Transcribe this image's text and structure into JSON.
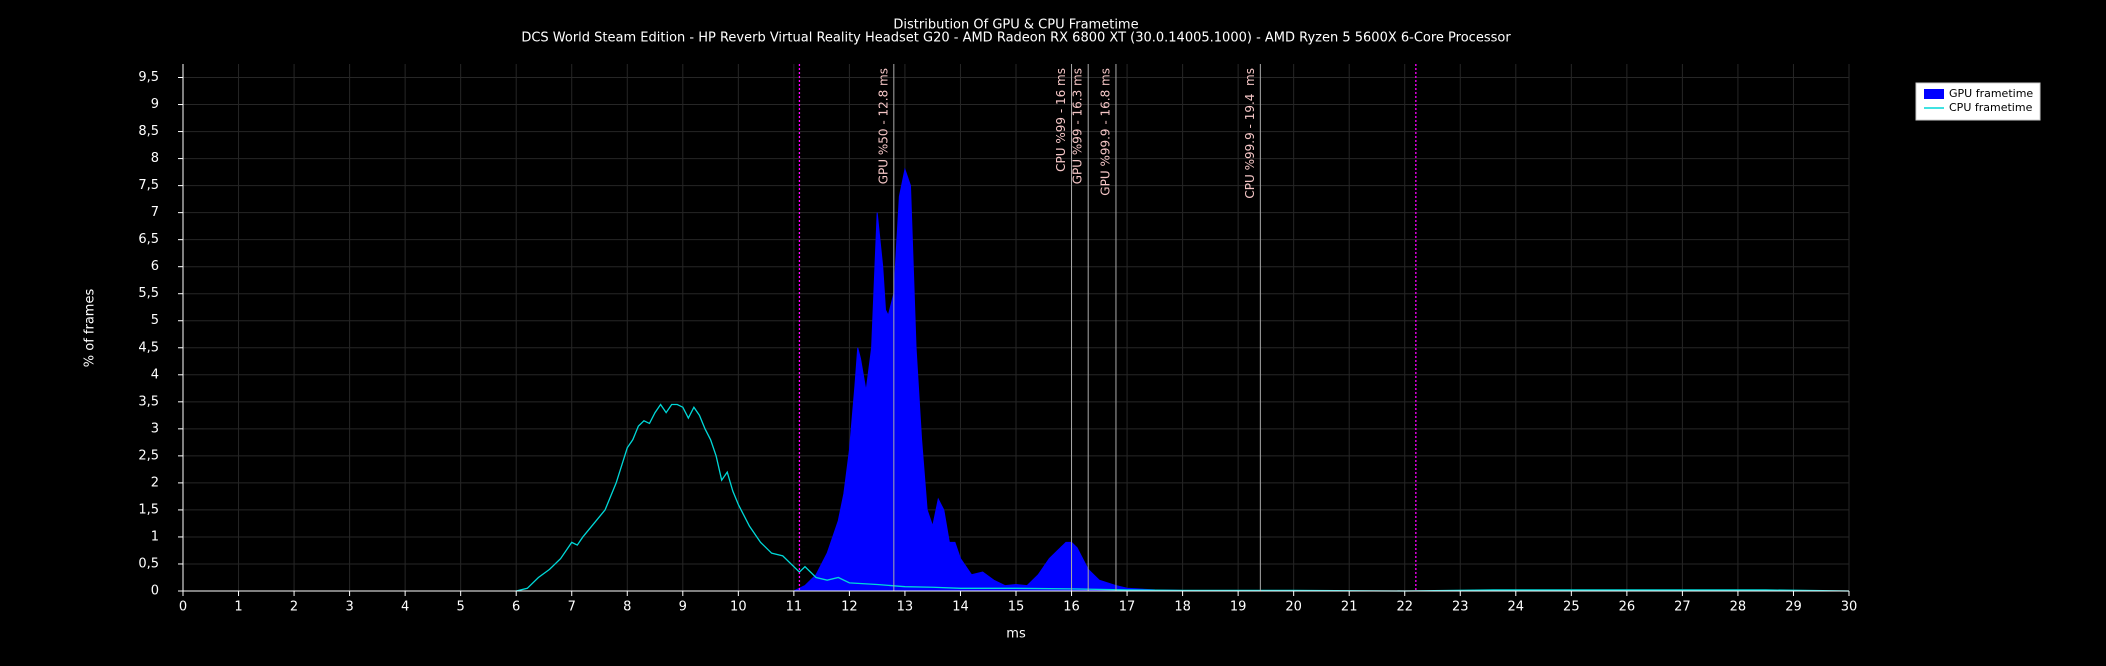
{
  "chart_data": {
    "type": "area-line",
    "title": "Distribution Of GPU & CPU Frametime",
    "subtitle": "DCS World Steam Edition - HP Reverb Virtual Reality Headset G20 - AMD Radeon RX 6800 XT (30.0.14005.1000) - AMD Ryzen 5 5600X 6-Core Processor",
    "x_label": "ms",
    "y_label": "% of frames",
    "xlim": [
      0,
      30
    ],
    "ylim": [
      0,
      9.75
    ],
    "xticks": [
      0,
      1,
      2,
      3,
      4,
      5,
      6,
      7,
      8,
      9,
      10,
      11,
      12,
      13,
      14,
      15,
      16,
      17,
      18,
      19,
      20,
      21,
      22,
      23,
      24,
      25,
      26,
      27,
      28,
      29,
      30
    ],
    "yticks": [
      0,
      {
        "value": 0.5,
        "label": "0,5"
      },
      1,
      {
        "value": 1.5,
        "label": "1,5"
      },
      2,
      {
        "value": 2.5,
        "label": "2,5"
      },
      3,
      {
        "value": 3.5,
        "label": "3,5"
      },
      4,
      {
        "value": 4.5,
        "label": "4,5"
      },
      5,
      {
        "value": 5.5,
        "label": "5,5"
      },
      6,
      {
        "value": 6.5,
        "label": "6,5"
      },
      7,
      {
        "value": 7.5,
        "label": "7,5"
      },
      8,
      {
        "value": 8.5,
        "label": "8,5"
      },
      9,
      {
        "value": 9.5,
        "label": "9,5"
      }
    ],
    "grid": true,
    "legend": "top-right",
    "series": [
      {
        "name": "GPU frametime",
        "color": "#0000ff",
        "style": "area",
        "x": [
          11.0,
          11.2,
          11.4,
          11.6,
          11.8,
          11.9,
          12.0,
          12.1,
          12.15,
          12.2,
          12.3,
          12.4,
          12.5,
          12.6,
          12.65,
          12.7,
          12.8,
          12.9,
          13.0,
          13.1,
          13.2,
          13.3,
          13.4,
          13.5,
          13.6,
          13.7,
          13.8,
          13.9,
          14.0,
          14.2,
          14.4,
          14.6,
          14.8,
          15.0,
          15.2,
          15.4,
          15.6,
          15.8,
          15.9,
          16.0,
          16.1,
          16.3,
          16.5,
          16.8,
          17.0,
          17.5,
          18.0,
          19.0,
          20.0
        ],
        "values": [
          0,
          0.1,
          0.3,
          0.7,
          1.3,
          1.8,
          2.6,
          3.8,
          4.5,
          4.3,
          3.7,
          4.5,
          7.0,
          6.0,
          5.2,
          5.1,
          5.5,
          7.3,
          7.8,
          7.5,
          4.5,
          2.8,
          1.5,
          1.2,
          1.7,
          1.5,
          0.9,
          0.9,
          0.6,
          0.3,
          0.35,
          0.2,
          0.1,
          0.12,
          0.1,
          0.3,
          0.6,
          0.8,
          0.9,
          0.9,
          0.8,
          0.4,
          0.2,
          0.1,
          0.05,
          0.02,
          0.01,
          0.01,
          0
        ]
      },
      {
        "name": "CPU frametime",
        "color": "#00d8d8",
        "style": "line",
        "x": [
          6.0,
          6.2,
          6.4,
          6.6,
          6.8,
          7.0,
          7.1,
          7.2,
          7.4,
          7.6,
          7.8,
          8.0,
          8.1,
          8.2,
          8.3,
          8.4,
          8.5,
          8.6,
          8.7,
          8.8,
          8.9,
          9.0,
          9.1,
          9.2,
          9.3,
          9.4,
          9.5,
          9.6,
          9.7,
          9.8,
          9.9,
          10.0,
          10.2,
          10.4,
          10.6,
          10.8,
          11.0,
          11.1,
          11.2,
          11.4,
          11.6,
          11.8,
          12.0,
          12.5,
          13.0,
          13.5,
          14.0,
          15.0,
          16.0,
          17.0,
          18.0,
          20.0,
          22.0,
          23.6,
          25.2,
          28.5,
          30.0
        ],
        "values": [
          0,
          0.05,
          0.25,
          0.4,
          0.6,
          0.9,
          0.85,
          1.0,
          1.25,
          1.5,
          2.0,
          2.65,
          2.8,
          3.05,
          3.15,
          3.1,
          3.3,
          3.45,
          3.3,
          3.45,
          3.45,
          3.4,
          3.2,
          3.4,
          3.25,
          3.0,
          2.8,
          2.5,
          2.05,
          2.2,
          1.85,
          1.6,
          1.2,
          0.9,
          0.7,
          0.65,
          0.45,
          0.35,
          0.45,
          0.25,
          0.2,
          0.25,
          0.15,
          0.12,
          0.08,
          0.07,
          0.05,
          0.05,
          0.04,
          0.02,
          0.01,
          0.01,
          0,
          0.02,
          0.02,
          0.02,
          0
        ]
      }
    ],
    "bounds": {
      "color": "#ff00ff",
      "values": [
        11.1,
        22.2
      ]
    },
    "percentiles": [
      {
        "value": 12.8,
        "label": "GPU %50 - 12.8 ms"
      },
      {
        "value": 16,
        "label": "CPU %99 - 16 ms"
      },
      {
        "value": 16.3,
        "label": "GPU %99 - 16.3 ms"
      },
      {
        "value": 16.8,
        "label": "GPU %99.9 - 16.8 ms"
      },
      {
        "value": 19.4,
        "label": "CPU %99.9 - 19.4  ms"
      }
    ]
  }
}
